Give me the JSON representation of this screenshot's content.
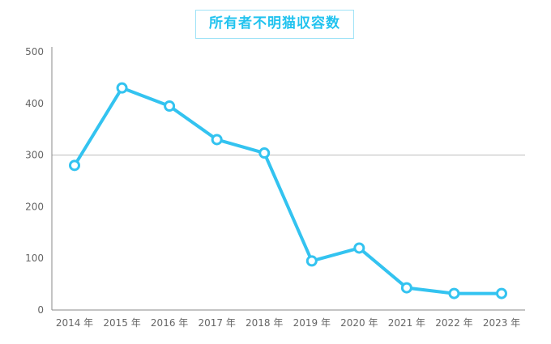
{
  "chart_data": {
    "type": "line",
    "title": "所有者不明猫収容数",
    "xlabel": "",
    "ylabel": "",
    "categories": [
      "2014 年",
      "2015 年",
      "2016 年",
      "2017 年",
      "2018 年",
      "2019 年",
      "2020 年",
      "2021 年",
      "2022 年",
      "2023 年"
    ],
    "series": [
      {
        "values": [
          280,
          430,
          395,
          330,
          304,
          95,
          120,
          43,
          32,
          32
        ],
        "color": "#33c3f0"
      }
    ],
    "ylim": [
      0,
      500
    ],
    "yticks": [
      "0",
      "100",
      "200",
      "300",
      "400",
      "500"
    ],
    "grid": "y=300 only",
    "legend": "none"
  }
}
